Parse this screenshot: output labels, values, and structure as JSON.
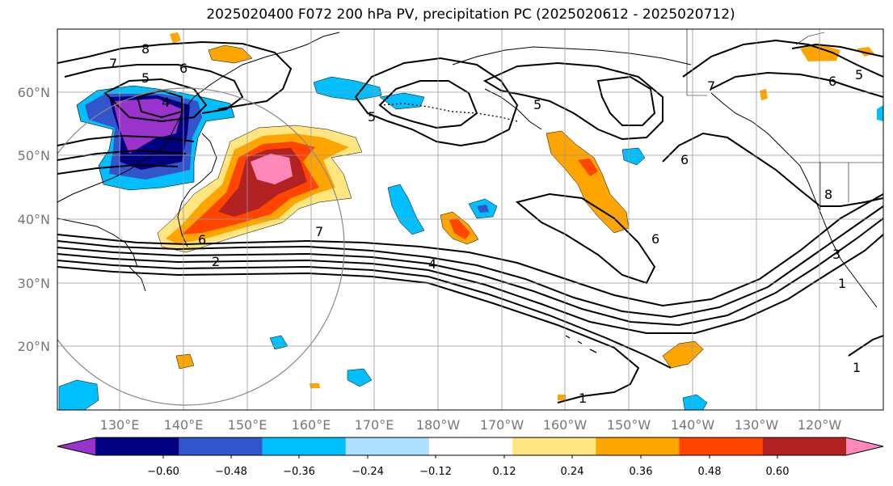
{
  "title": "2025020400 F072 200 hPa PV, precipitation PC (2025020612 - 2025020712)",
  "lat_labels": [
    "60°N",
    "50°N",
    "40°N",
    "30°N",
    "20°N"
  ],
  "lon_labels": [
    "130°E",
    "140°E",
    "150°E",
    "160°E",
    "170°E",
    "180°W",
    "170°W",
    "160°W",
    "150°W",
    "140°W",
    "130°W",
    "120°W"
  ],
  "contour_labels": [
    "8",
    "7",
    "6",
    "5",
    "4",
    "5",
    "5",
    "6",
    "7",
    "6",
    "8",
    "7",
    "6",
    "5",
    "2",
    "4",
    "6",
    "3",
    "1",
    "1",
    "1"
  ],
  "colorbar": {
    "colors": [
      "#9933cc",
      "#000080",
      "#3355cc",
      "#00bfff",
      "#b0e0ff",
      "#ffffff",
      "#ffe680",
      "#ffa500",
      "#ff4500",
      "#b22222",
      "#ff88bb"
    ],
    "tick_labels": [
      "−0.60",
      "−0.48",
      "−0.36",
      "−0.24",
      "−0.12",
      "0.12",
      "0.24",
      "0.36",
      "0.48",
      "0.60"
    ]
  }
}
